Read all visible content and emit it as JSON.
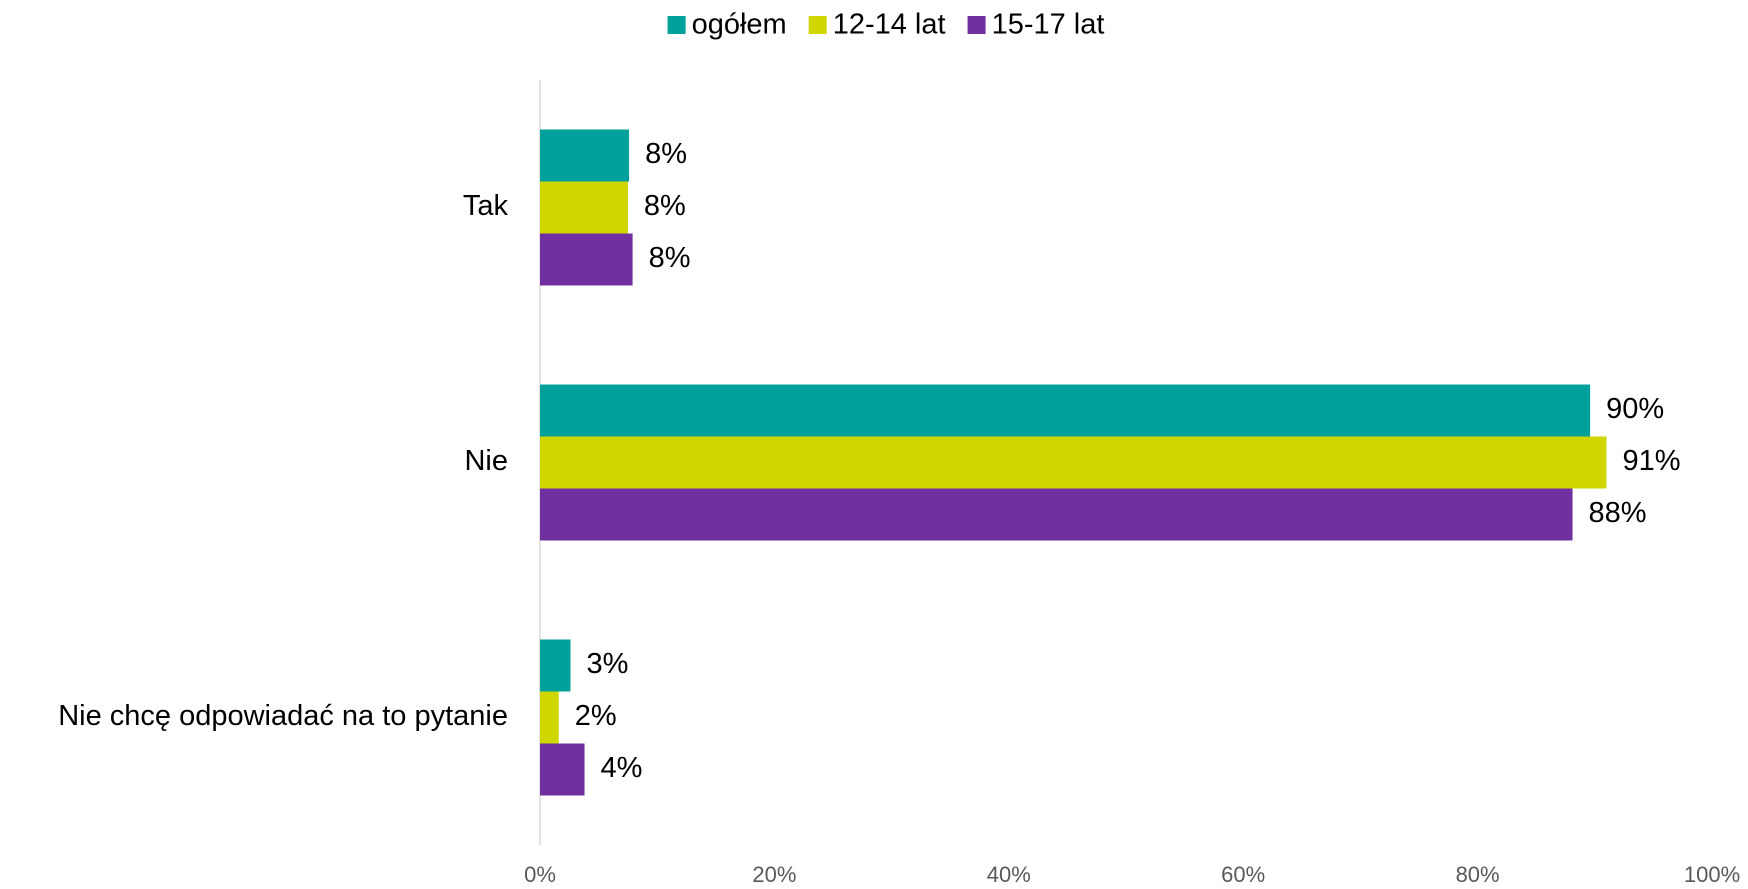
{
  "chart_data": {
    "type": "bar",
    "orientation": "horizontal",
    "categories": [
      "Tak",
      "Nie",
      "Nie chcę odpowiadać na to pytanie"
    ],
    "series": [
      {
        "name": "ogółem",
        "color": "#00a19a",
        "values": [
          7.6,
          89.6,
          2.6
        ],
        "value_labels": [
          "8%",
          "90%",
          "3%"
        ]
      },
      {
        "name": "12-14 lat",
        "color": "#cfd600",
        "values": [
          7.5,
          91.0,
          1.6
        ],
        "value_labels": [
          "8%",
          "91%",
          "2%"
        ]
      },
      {
        "name": "15-17 lat",
        "color": "#7030a0",
        "values": [
          7.9,
          88.1,
          3.8
        ],
        "value_labels": [
          "8%",
          "88%",
          "4%"
        ]
      }
    ],
    "xlim": [
      0,
      100
    ],
    "xticks": [
      {
        "value": 0,
        "label": "0%"
      },
      {
        "value": 20,
        "label": "20%"
      },
      {
        "value": 40,
        "label": "40%"
      },
      {
        "value": 60,
        "label": "60%"
      },
      {
        "value": 80,
        "label": "80%"
      },
      {
        "value": 100,
        "label": "100%"
      }
    ],
    "legend": "top"
  }
}
